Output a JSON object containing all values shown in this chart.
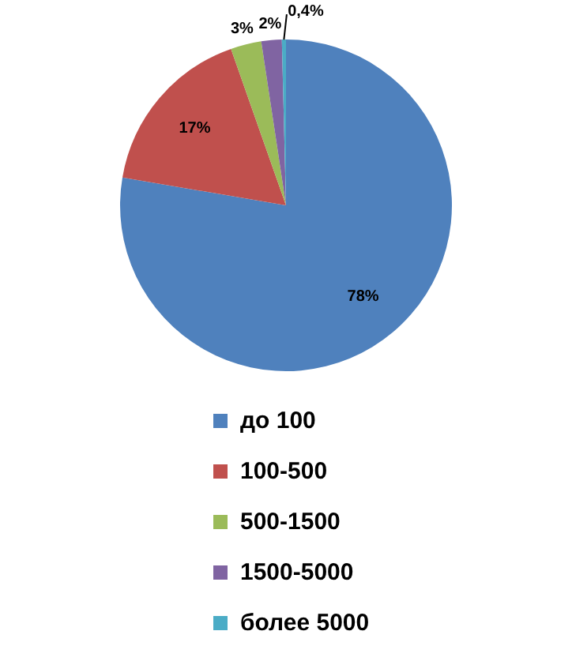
{
  "chart_data": {
    "type": "pie",
    "categories": [
      "до 100",
      "100-500",
      "500-1500",
      "1500-5000",
      "более 5000"
    ],
    "values": [
      78,
      17,
      3,
      2,
      0.4
    ],
    "colors": [
      "#4f81bd",
      "#c0504d",
      "#9bbb59",
      "#8064a2",
      "#4bacc6"
    ],
    "value_labels": [
      "78%",
      "17%",
      "3%",
      "2%",
      "0,4%"
    ],
    "legend": "bottom"
  }
}
